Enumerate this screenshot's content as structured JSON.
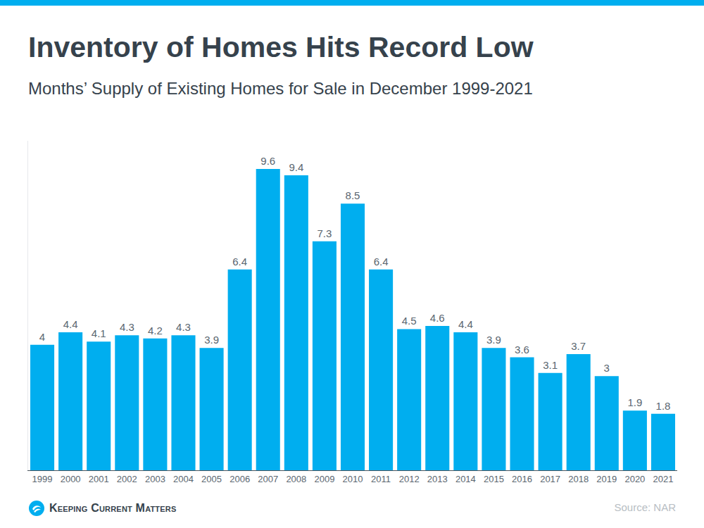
{
  "chart_data": {
    "type": "bar",
    "title": "Inventory of Homes Hits Record Low",
    "subtitle": "Months’ Supply of Existing Homes for Sale in December 1999-2021",
    "categories": [
      "1999",
      "2000",
      "2001",
      "2002",
      "2003",
      "2004",
      "2005",
      "2006",
      "2007",
      "2008",
      "2009",
      "2010",
      "2011",
      "2012",
      "2013",
      "2014",
      "2015",
      "2016",
      "2017",
      "2018",
      "2019",
      "2020",
      "2021"
    ],
    "values": [
      4,
      4.4,
      4.1,
      4.3,
      4.2,
      4.3,
      3.9,
      6.4,
      9.6,
      9.4,
      7.3,
      8.5,
      6.4,
      4.5,
      4.6,
      4.4,
      3.9,
      3.6,
      3.1,
      3.7,
      3,
      1.9,
      1.8
    ],
    "color": "#00aeef",
    "ylim": [
      0,
      10.5
    ],
    "data_labels": true,
    "tick_labels": "x",
    "grid": false,
    "annotations": [
      "Keeping Current Matters",
      "Source: NAR"
    ]
  }
}
